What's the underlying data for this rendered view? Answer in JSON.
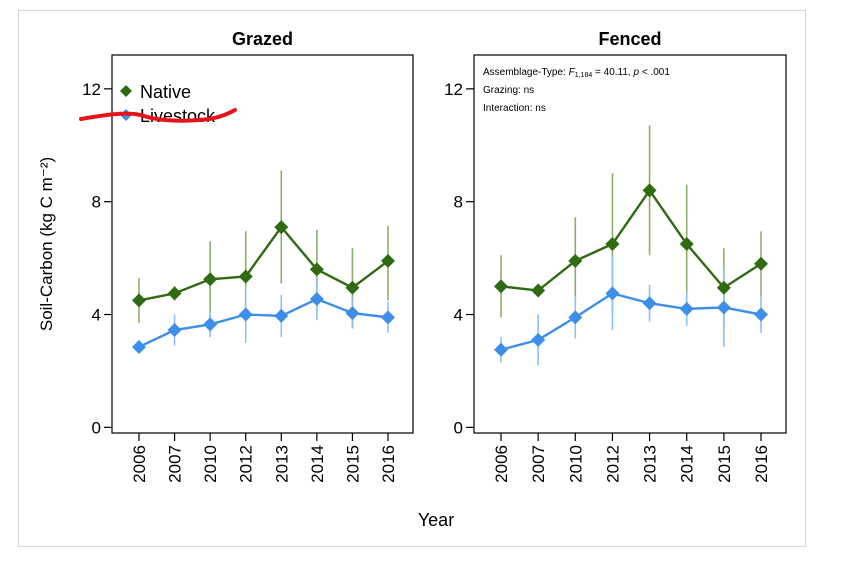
{
  "chart_data": {
    "type": "line",
    "ylabel": "Soil-Carbon (kg C m⁻²)",
    "xlabel": "Year",
    "yticks": [
      0,
      4,
      8,
      12
    ],
    "ylim": [
      -0.2,
      13.2
    ],
    "categories": [
      "2006",
      "2007",
      "2010",
      "2012",
      "2013",
      "2014",
      "2015",
      "2016"
    ],
    "colors": {
      "Native": "#2e6b12",
      "Livestock": "#3d8ee8",
      "Native_err": "#8fae6b",
      "Livestock_err": "#8ec0f2"
    },
    "legend": {
      "position": "top-left",
      "entries": [
        "Native",
        "Livestock"
      ]
    },
    "panels": [
      {
        "title": "Grazed",
        "series": [
          {
            "name": "Native",
            "values": [
              4.5,
              4.75,
              5.25,
              5.35,
              7.1,
              5.6,
              4.95,
              5.9
            ],
            "err_low": [
              3.7,
              4.5,
              3.9,
              3.7,
              5.1,
              4.15,
              3.55,
              4.5
            ],
            "err_high": [
              5.3,
              5.0,
              6.6,
              6.95,
              9.1,
              7.0,
              6.35,
              7.15
            ]
          },
          {
            "name": "Livestock",
            "values": [
              2.85,
              3.45,
              3.65,
              4.0,
              3.95,
              4.55,
              4.05,
              3.9
            ],
            "err_low": [
              2.65,
              2.9,
              3.2,
              3.0,
              3.2,
              3.8,
              3.5,
              3.35
            ],
            "err_high": [
              3.05,
              4.0,
              4.1,
              5.0,
              4.7,
              5.3,
              4.6,
              4.45
            ]
          }
        ]
      },
      {
        "title": "Fenced",
        "stats": {
          "assemblage_prefix": "Assemblage-Type: ",
          "assemblage_F": "F",
          "assemblage_df": "1,184",
          "assemblage_rest": " = 40.11, ",
          "assemblage_p": "p",
          "assemblage_end": " < .001",
          "grazing": "Grazing: ns",
          "interaction": "Interaction: ns"
        },
        "series": [
          {
            "name": "Native",
            "values": [
              5.0,
              4.85,
              5.9,
              6.5,
              8.4,
              6.5,
              4.95,
              5.8
            ],
            "err_low": [
              3.9,
              4.7,
              4.4,
              4.0,
              6.1,
              4.4,
              3.55,
              4.65
            ],
            "err_high": [
              6.1,
              5.0,
              7.45,
              9.0,
              10.7,
              8.6,
              6.35,
              6.95
            ]
          },
          {
            "name": "Livestock",
            "values": [
              2.75,
              3.1,
              3.9,
              4.75,
              4.4,
              4.2,
              4.25,
              4.0
            ],
            "err_low": [
              2.3,
              2.2,
              3.15,
              3.45,
              3.75,
              3.6,
              2.85,
              3.35
            ],
            "err_high": [
              3.2,
              4.0,
              4.65,
              6.05,
              5.05,
              4.8,
              5.65,
              4.65
            ]
          }
        ]
      }
    ]
  }
}
